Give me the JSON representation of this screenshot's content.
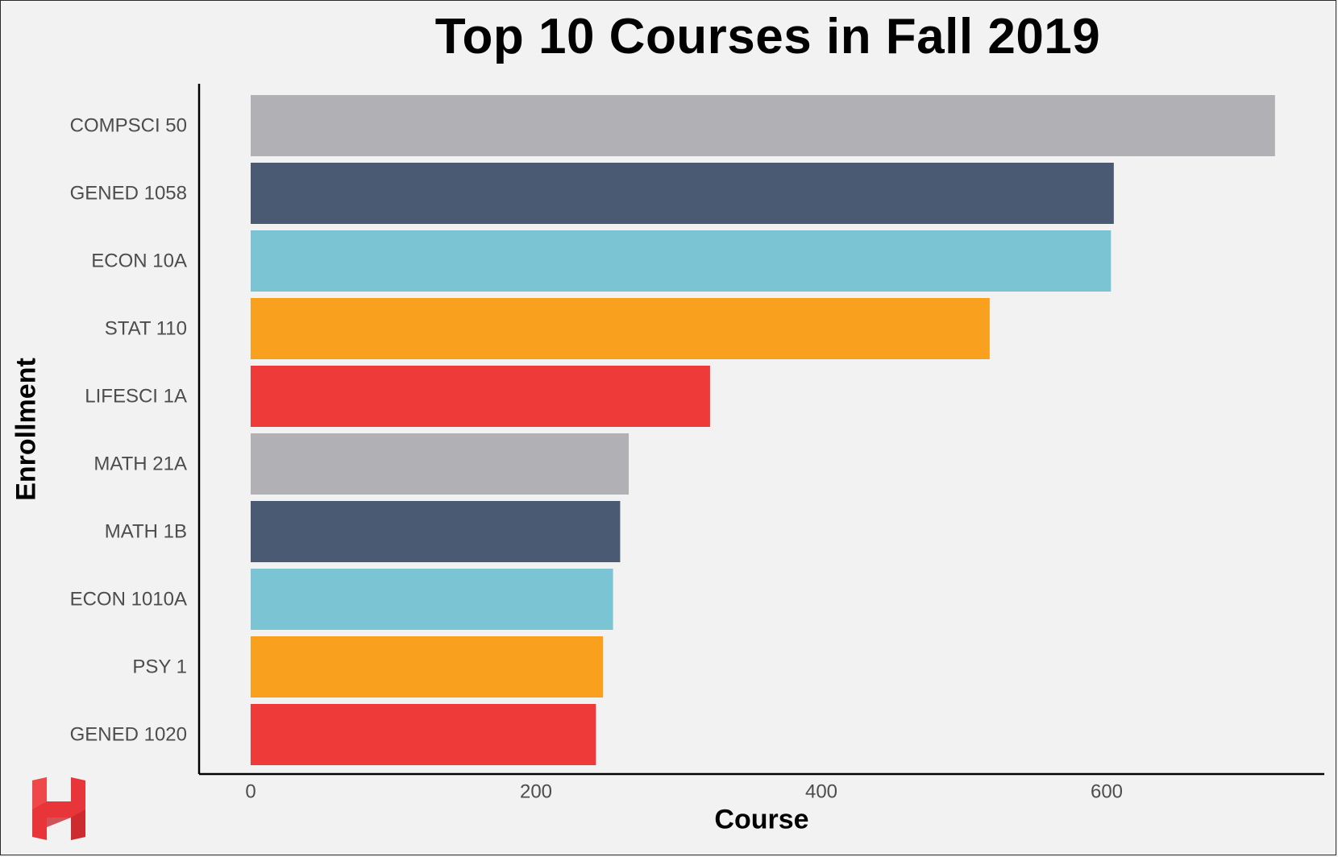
{
  "chart_data": {
    "type": "bar",
    "orientation": "horizontal",
    "title": "Top 10 Courses in Fall 2019",
    "xlabel": "Course",
    "ylabel": "Enrollment",
    "categories": [
      "COMPSCI 50",
      "GENED 1058",
      "ECON 10A",
      "STAT 110",
      "LIFESCI 1A",
      "MATH 21A",
      "MATH 1B",
      "ECON 1010A",
      "PSY 1",
      "GENED 1020"
    ],
    "values": [
      718,
      605,
      603,
      518,
      322,
      265,
      259,
      254,
      247,
      242
    ],
    "colors": [
      "#b1b0b5",
      "#4b5a73",
      "#7ac4d4",
      "#f9a01f",
      "#ee3a39",
      "#b1b0b5",
      "#4b5a73",
      "#7ac4d4",
      "#f9a01f",
      "#ee3a39"
    ],
    "xlim": [
      0,
      750
    ],
    "x_ticks": [
      0,
      200,
      400,
      600
    ],
    "grid": false,
    "legend": "none"
  },
  "logo": {
    "name": "H",
    "color": "#e8353a"
  }
}
